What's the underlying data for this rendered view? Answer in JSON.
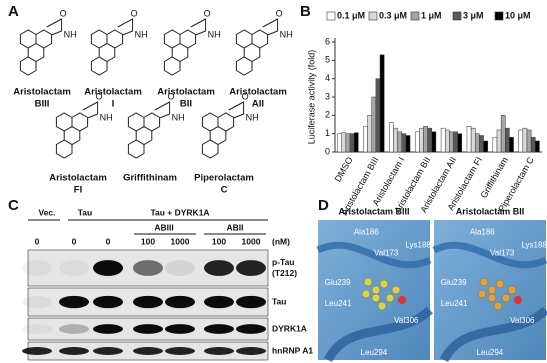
{
  "panel_labels": [
    "A",
    "B",
    "C",
    "D"
  ],
  "structures": {
    "compounds": [
      [
        "Aristolactam",
        "BIII"
      ],
      [
        "Aristolactam",
        "I"
      ],
      [
        "Aristolactam",
        "BII"
      ],
      [
        "Aristolactam",
        "AII"
      ],
      [
        "Aristolactam",
        "FI"
      ],
      [
        "Griffithinam"
      ],
      [
        "Piperolactam",
        "C"
      ]
    ]
  },
  "chart_data": {
    "type": "bar",
    "ylabel": "Luciferase activity (fold)",
    "categories": [
      "DMSO",
      "Aristolactam BIII",
      "Aristolactam I",
      "Aristolactam BII",
      "Aristolactam AII",
      "Aristolactam FI",
      "Griffithinam",
      "Piperolactam C"
    ],
    "series": [
      {
        "name": "0.1 μM",
        "color": "#ffffff",
        "values": [
          1.0,
          1.4,
          1.6,
          1.1,
          1.3,
          1.4,
          0.8,
          1.2
        ]
      },
      {
        "name": "0.3 μM",
        "color": "#d9d9d9",
        "values": [
          1.05,
          2.0,
          1.3,
          1.3,
          1.2,
          1.3,
          1.2,
          1.3
        ]
      },
      {
        "name": "1 μM",
        "color": "#a6a6a6",
        "values": [
          1.0,
          3.0,
          1.1,
          1.4,
          1.1,
          1.0,
          2.0,
          1.2
        ]
      },
      {
        "name": "3 μM",
        "color": "#595959",
        "values": [
          1.0,
          4.0,
          1.0,
          1.3,
          1.1,
          0.9,
          1.3,
          0.8
        ]
      },
      {
        "name": "10 μM",
        "color": "#000000",
        "values": [
          1.05,
          5.3,
          0.9,
          1.1,
          1.0,
          0.6,
          0.8,
          0.6
        ]
      }
    ],
    "ylim": [
      0,
      6
    ],
    "yticks": [
      0,
      1,
      2,
      3,
      4,
      5,
      6
    ],
    "legend": "top"
  },
  "blot": {
    "groups": [
      "Vec.",
      "Tau",
      "Tau + DYRK1A"
    ],
    "subgroups": [
      "ABIII",
      "ABII"
    ],
    "concentrations": [
      "0",
      "0",
      "0",
      "100",
      "1000",
      "100",
      "1000"
    ],
    "unit": "(nM)",
    "bands": [
      [
        "p-Tau",
        "(T212)"
      ],
      [
        "Tau"
      ],
      [
        "DYRK1A"
      ],
      [
        "hnRNP A1"
      ]
    ]
  },
  "docking": {
    "panels": [
      {
        "title": "Aristolactam BIII",
        "residues": [
          "Ala186",
          "Val173",
          "Lys188",
          "Glu239",
          "Leu241",
          "Val306",
          "Leu294"
        ]
      },
      {
        "title": "Aristolactam BII",
        "residues": [
          "Ala186",
          "Val173",
          "Lys188",
          "Glu239",
          "Leu241",
          "Val306",
          "Leu294"
        ]
      }
    ]
  }
}
